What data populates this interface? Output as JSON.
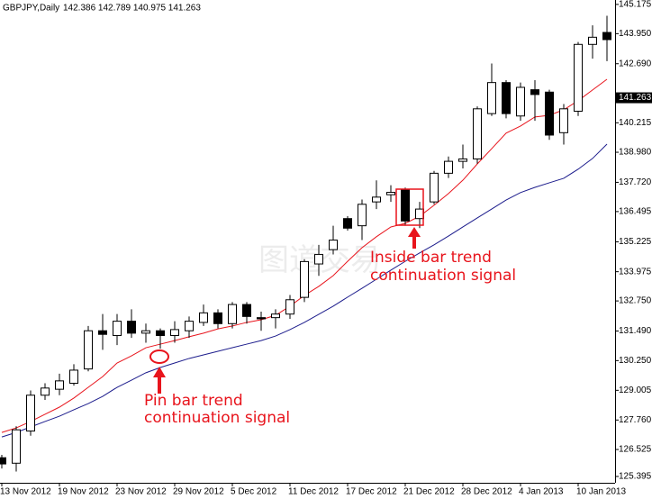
{
  "chart_data": {
    "type": "candlestick",
    "title": "GBPJPY,Daily",
    "ohlc_text": "142.386 142.789 140.975 141.263",
    "categories": [
      "13 Nov 2012",
      null,
      null,
      null,
      "19 Nov 2012",
      null,
      null,
      null,
      "23 Nov 2012",
      null,
      null,
      null,
      "29 Nov 2012",
      null,
      null,
      null,
      "5 Dec 2012",
      null,
      null,
      null,
      "11 Dec 2012",
      null,
      null,
      null,
      "17 Dec 2012",
      null,
      null,
      null,
      "21 Dec 2012",
      null,
      null,
      null,
      "28 Dec 2012",
      null,
      null,
      null,
      "4 Jan 2013",
      null,
      null,
      null,
      "10 Jan 2013",
      null,
      null
    ],
    "open": [
      126.18,
      125.95,
      127.3,
      128.8,
      129.05,
      129.3,
      129.9,
      131.5,
      131.3,
      131.9,
      131.4,
      131.5,
      131.3,
      131.5,
      131.85,
      132.25,
      131.8,
      132.6,
      132.05,
      132.05,
      132.2,
      132.9,
      134.3,
      134.9,
      136.2,
      135.9,
      136.9,
      137.2,
      137.4,
      136.2,
      136.9,
      138.1,
      138.6,
      138.7,
      140.6,
      141.9,
      140.5,
      141.6,
      141.5,
      139.8,
      140.7,
      143.5,
      144.0
    ],
    "high": [
      126.3,
      127.5,
      129.0,
      129.3,
      129.7,
      130.1,
      131.7,
      132.2,
      132.2,
      132.4,
      131.8,
      131.6,
      131.9,
      132.1,
      132.6,
      132.4,
      132.7,
      132.7,
      132.3,
      132.4,
      133.0,
      134.5,
      135.1,
      135.9,
      136.3,
      137.0,
      137.8,
      137.6,
      137.5,
      136.9,
      138.2,
      138.8,
      139.3,
      140.9,
      142.7,
      142.0,
      141.9,
      142.0,
      141.6,
      141.0,
      143.6,
      144.3,
      144.7
    ],
    "low": [
      125.73,
      125.6,
      127.1,
      128.6,
      128.8,
      129.2,
      129.8,
      130.7,
      130.9,
      131.2,
      131.0,
      130.75,
      131.0,
      131.2,
      131.7,
      131.6,
      131.6,
      131.8,
      131.5,
      131.6,
      132.0,
      132.7,
      133.8,
      134.7,
      135.7,
      135.3,
      136.6,
      136.9,
      135.9,
      135.8,
      136.8,
      137.9,
      138.3,
      138.5,
      140.5,
      140.4,
      140.3,
      140.3,
      139.5,
      139.3,
      140.5,
      142.9,
      142.8
    ],
    "close": [
      125.92,
      127.35,
      128.8,
      129.1,
      129.4,
      129.85,
      131.5,
      131.35,
      131.9,
      131.4,
      131.5,
      131.3,
      131.55,
      131.9,
      132.25,
      131.8,
      132.6,
      132.1,
      132.0,
      132.2,
      132.8,
      134.4,
      134.7,
      135.3,
      135.8,
      136.8,
      137.1,
      137.3,
      136.1,
      136.6,
      138.1,
      138.6,
      138.7,
      140.8,
      141.9,
      140.6,
      141.7,
      141.4,
      139.7,
      140.8,
      143.5,
      143.8,
      143.7
    ],
    "series": [
      {
        "color": "#e8141c",
        "values": [
          127.24,
          127.43,
          127.7,
          128.0,
          128.3,
          128.68,
          129.13,
          129.58,
          130.15,
          130.45,
          130.79,
          130.94,
          131.09,
          131.25,
          131.4,
          131.58,
          131.7,
          131.85,
          131.96,
          132.15,
          132.53,
          132.98,
          133.36,
          133.81,
          134.41,
          134.98,
          135.44,
          135.85,
          136.0,
          136.3,
          136.76,
          137.25,
          137.81,
          138.49,
          139.13,
          139.78,
          140.08,
          140.46,
          140.53,
          140.76,
          141.14,
          141.59,
          142.04
        ]
      },
      {
        "color": "#1c1c8c",
        "values": [
          127.05,
          127.24,
          127.47,
          127.7,
          127.92,
          128.19,
          128.45,
          128.75,
          129.13,
          129.43,
          129.74,
          129.96,
          130.15,
          130.34,
          130.49,
          130.64,
          130.79,
          130.94,
          131.09,
          131.28,
          131.55,
          131.85,
          132.19,
          132.53,
          132.91,
          133.28,
          133.66,
          134.04,
          134.41,
          134.76,
          135.1,
          135.47,
          135.85,
          136.23,
          136.6,
          136.98,
          137.29,
          137.51,
          137.7,
          137.89,
          138.27,
          138.72,
          139.32
        ]
      }
    ],
    "ylim": [
      125.13,
      145.36
    ],
    "yticks": [
      125.395,
      126.525,
      {
        "value": 127.76,
        "label": "127.760"
      },
      129.005,
      {
        "value": 130.25,
        "label": "130.250"
      },
      {
        "value": 131.49,
        "label": "131.490"
      },
      {
        "value": 132.75,
        "label": "132.750"
      },
      133.975,
      135.225,
      136.495,
      {
        "value": 137.72,
        "label": "137.720"
      },
      {
        "value": 138.98,
        "label": "138.980"
      },
      140.215,
      {
        "value": 142.69,
        "label": "142.690"
      },
      {
        "value": 143.95,
        "label": "143.950"
      },
      145.175
    ],
    "last_price": 141.263,
    "annotations": [
      {
        "lines": [
          "Inside bar trend",
          "continuation signal"
        ]
      },
      {
        "lines": [
          "Pin bar trend",
          "continuation signal"
        ]
      }
    ],
    "watermark": "图道交易"
  }
}
